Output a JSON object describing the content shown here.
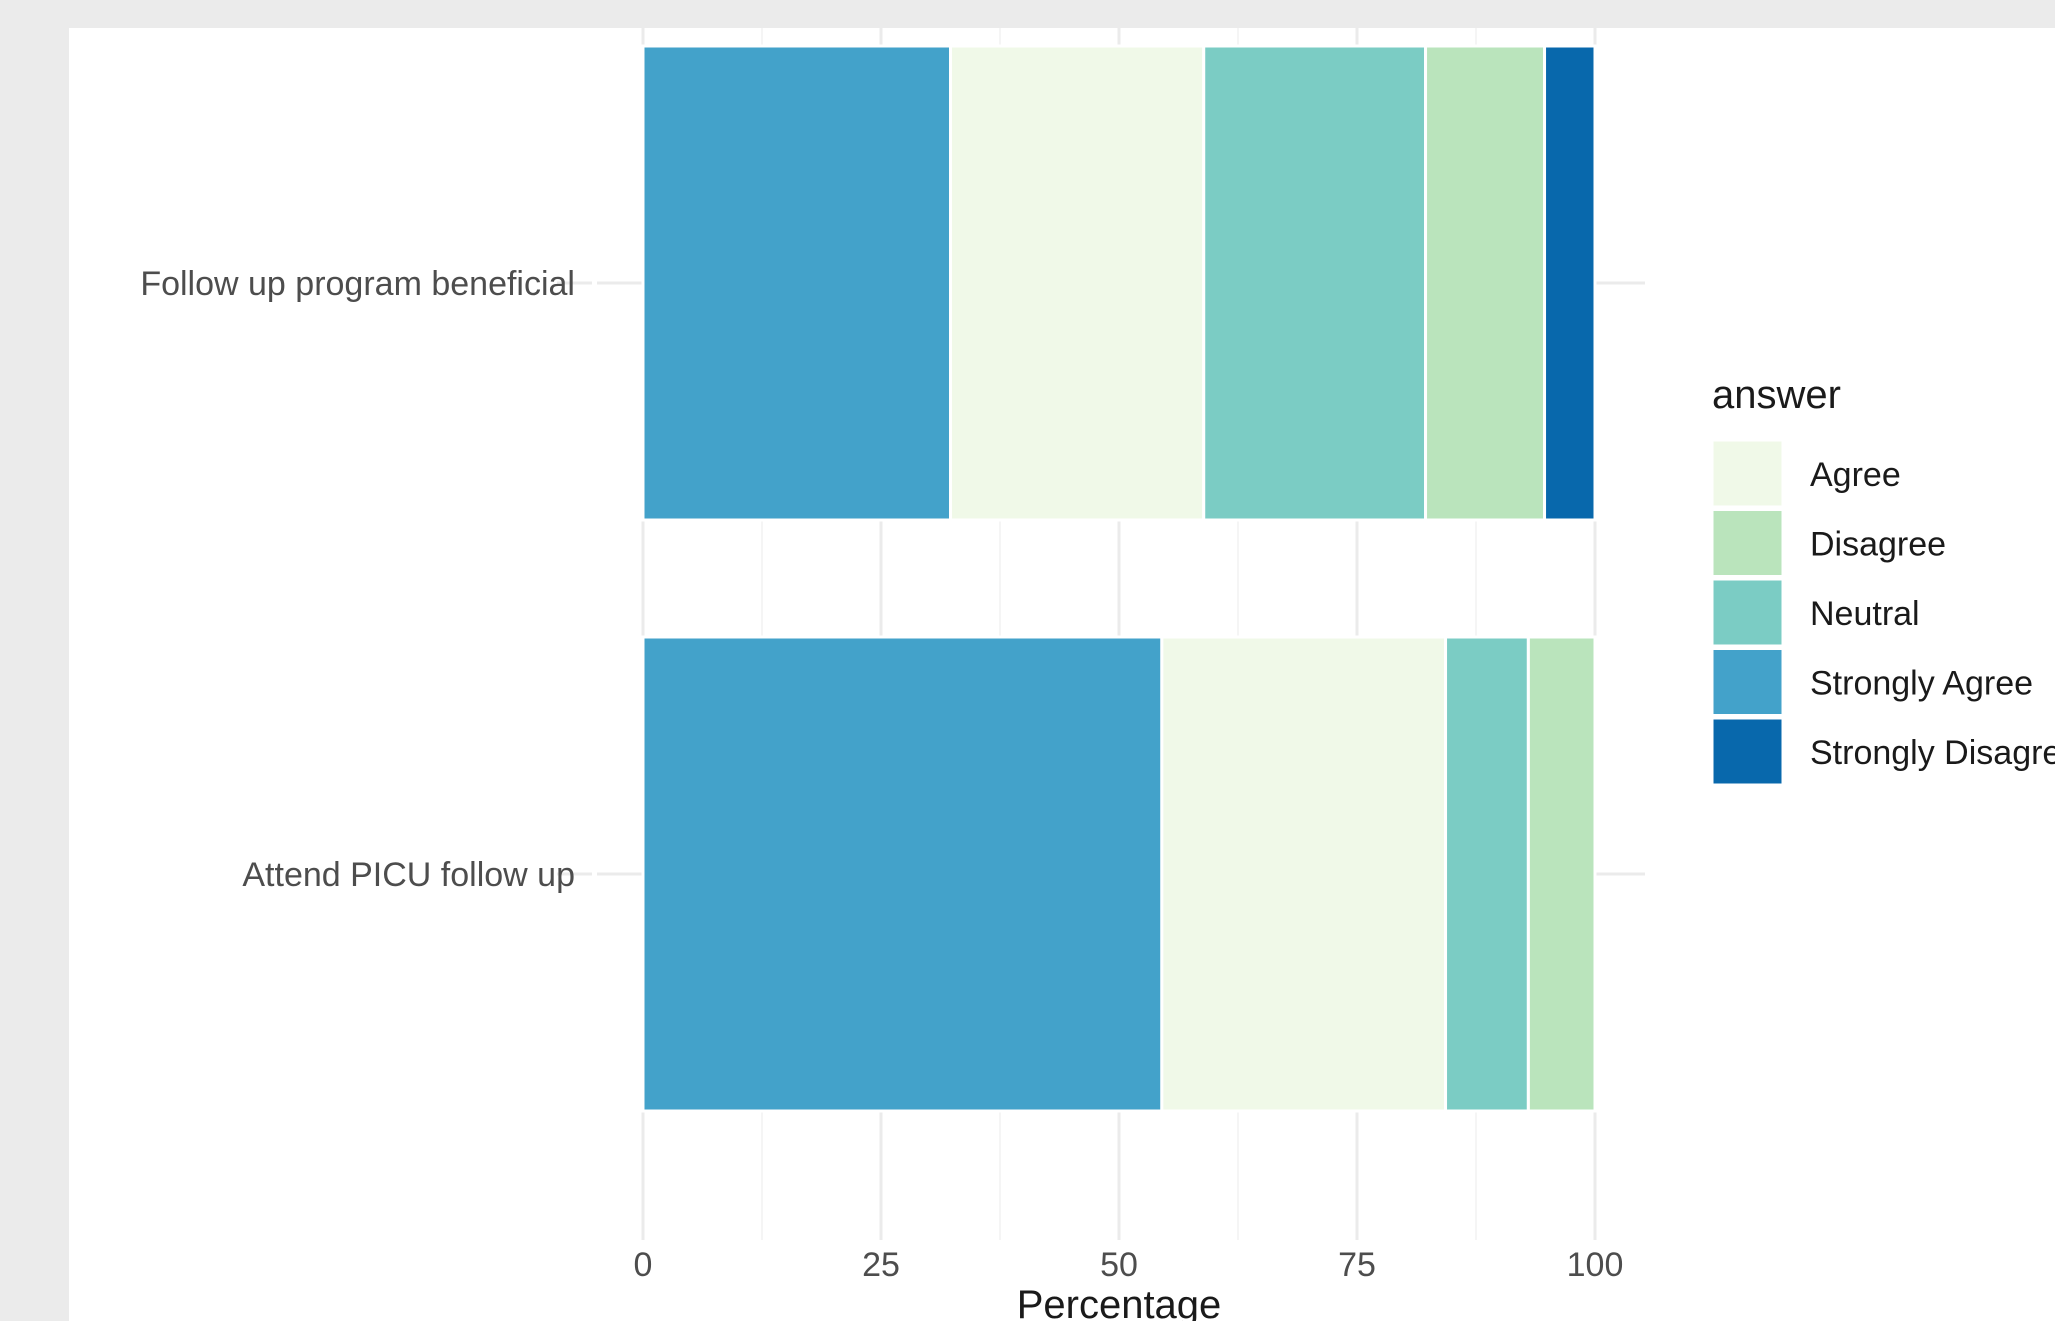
{
  "chart_data": {
    "type": "bar",
    "orientation": "horizontal",
    "stacked": true,
    "categories": [
      "Follow up program beneficial",
      "Attend PICU follow up"
    ],
    "series": [
      {
        "name": "Strongly Agree",
        "color": "#43a2ca",
        "values": [
          32.3,
          54.5
        ]
      },
      {
        "name": "Agree",
        "color": "#f0f9e8",
        "values": [
          26.6,
          29.8
        ]
      },
      {
        "name": "Neutral",
        "color": "#7bccc4",
        "values": [
          23.3,
          8.7
        ]
      },
      {
        "name": "Disagree",
        "color": "#bae4bc",
        "values": [
          12.5,
          7.0
        ]
      },
      {
        "name": "Strongly Disagree",
        "color": "#0868ac",
        "values": [
          5.3,
          0
        ]
      }
    ],
    "xlabel": "Percentage",
    "ylabel": "",
    "xlim": [
      0,
      100
    ],
    "xticks": [
      "0",
      "25",
      "50",
      "75",
      "100"
    ],
    "grid": true,
    "legend": {
      "title": "answer",
      "position": "right",
      "entries": [
        "Agree",
        "Disagree",
        "Neutral",
        "Strongly Agree",
        "Strongly Disagree"
      ]
    }
  }
}
